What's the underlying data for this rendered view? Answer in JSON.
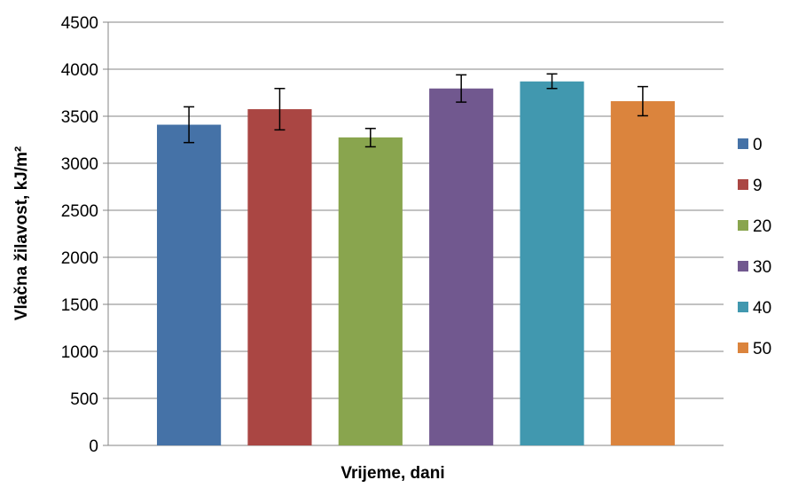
{
  "chart_data": {
    "type": "bar",
    "xlabel": "Vrijeme, dani",
    "ylabel": "Vlačna žilavost, kJ/m²",
    "ylim": [
      0,
      4500
    ],
    "ytick_step": 500,
    "grid": true,
    "legend_position": "right",
    "series": [
      {
        "name": "0",
        "value": 3410,
        "error_low": 3220,
        "error_high": 3600,
        "color": "#4572A7"
      },
      {
        "name": "9",
        "value": 3575,
        "error_low": 3355,
        "error_high": 3795,
        "color": "#AA4643"
      },
      {
        "name": "20",
        "value": 3275,
        "error_low": 3175,
        "error_high": 3370,
        "color": "#89A54E"
      },
      {
        "name": "30",
        "value": 3795,
        "error_low": 3650,
        "error_high": 3940,
        "color": "#71588F"
      },
      {
        "name": "40",
        "value": 3870,
        "error_low": 3795,
        "error_high": 3950,
        "color": "#4198AF"
      },
      {
        "name": "50",
        "value": 3660,
        "error_low": 3505,
        "error_high": 3815,
        "color": "#DB843D"
      }
    ]
  }
}
